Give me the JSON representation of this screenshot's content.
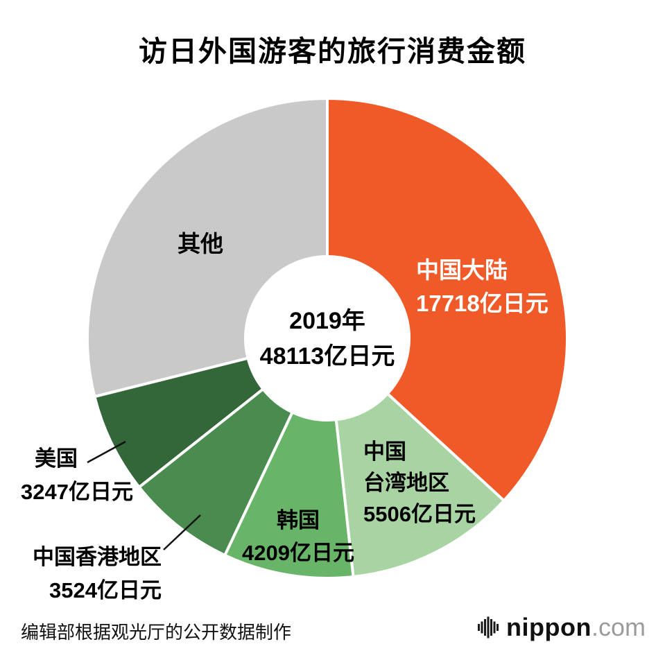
{
  "chart_data": {
    "type": "pie",
    "donut": true,
    "title": "访日外国游客的旅行消费金额",
    "unit": "亿日元",
    "total": 48113,
    "center_lines": [
      "2019年",
      "48113亿日元"
    ],
    "start_angle_deg": 0,
    "direction": "clockwise",
    "legend": "none",
    "segments": [
      {
        "key": "mainland-china",
        "name": "中国大陆",
        "value": 17718,
        "color": "#F05A28",
        "label_color": "#ffffff",
        "label_lines": [
          "中国大陆",
          "17718亿日元"
        ]
      },
      {
        "key": "taiwan",
        "name": "中国台湾地区",
        "value": 5506,
        "color": "#A8D3A2",
        "label_color": "#000000",
        "label_lines": [
          "中国",
          "台湾地区",
          "5506亿日元"
        ]
      },
      {
        "key": "south-korea",
        "name": "韩国",
        "value": 4209,
        "color": "#68B468",
        "label_color": "#000000",
        "label_lines": [
          "韩国",
          "4209亿日元"
        ]
      },
      {
        "key": "hong-kong",
        "name": "中国香港地区",
        "value": 3524,
        "color": "#4A8B4F",
        "label_color": "#000000",
        "label_lines": [
          "中国香港地区",
          "3524亿日元"
        ]
      },
      {
        "key": "usa",
        "name": "美国",
        "value": 3247,
        "color": "#336639",
        "label_color": "#000000",
        "label_lines": [
          "美国",
          "3247亿日元"
        ]
      },
      {
        "key": "others",
        "name": "其他",
        "value": 13909,
        "color": "#C9C9C9",
        "label_color": "#000000",
        "label_lines": [
          "其他"
        ]
      }
    ]
  },
  "footer": {
    "source": "编辑部根据观光厅的公开数据制作"
  },
  "logo": {
    "name": "nippon",
    "tld": ".com",
    "icon": "nippon-bars-icon"
  }
}
